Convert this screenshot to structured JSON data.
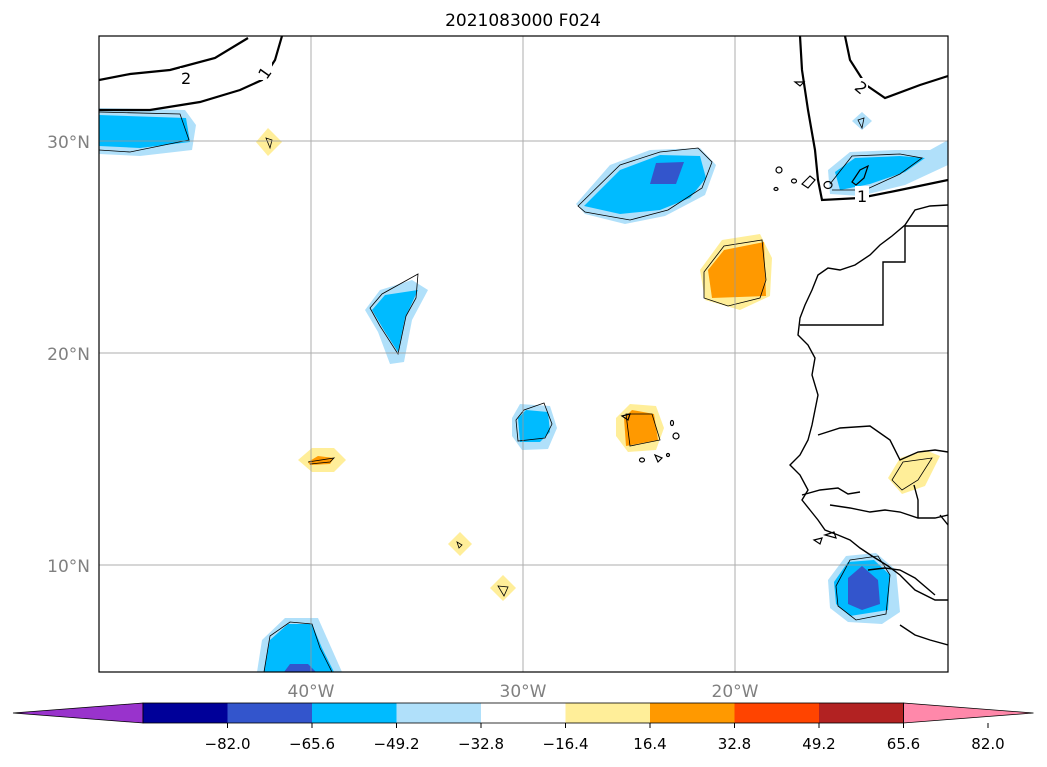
{
  "title": "2021083000 F024",
  "axes": {
    "lon_ticks": [
      "40°W",
      "30°W",
      "20°W"
    ],
    "lat_ticks": [
      "30°N",
      "20°N",
      "10°N"
    ]
  },
  "contour_labels": [
    "2",
    "1",
    "2",
    "1"
  ],
  "colorbar": {
    "colors": [
      "#9933cc",
      "#000099",
      "#3355cc",
      "#00bbff",
      "#b0e0fa",
      "#ffffff",
      "#ffee99",
      "#ff9900",
      "#ff4400",
      "#b22222",
      "#ff88aa"
    ],
    "tick_labels": [
      "−82.0",
      "−65.6",
      "−49.2",
      "−32.8",
      "−16.4",
      "16.4",
      "32.8",
      "49.2",
      "65.6",
      "82.0"
    ]
  }
}
